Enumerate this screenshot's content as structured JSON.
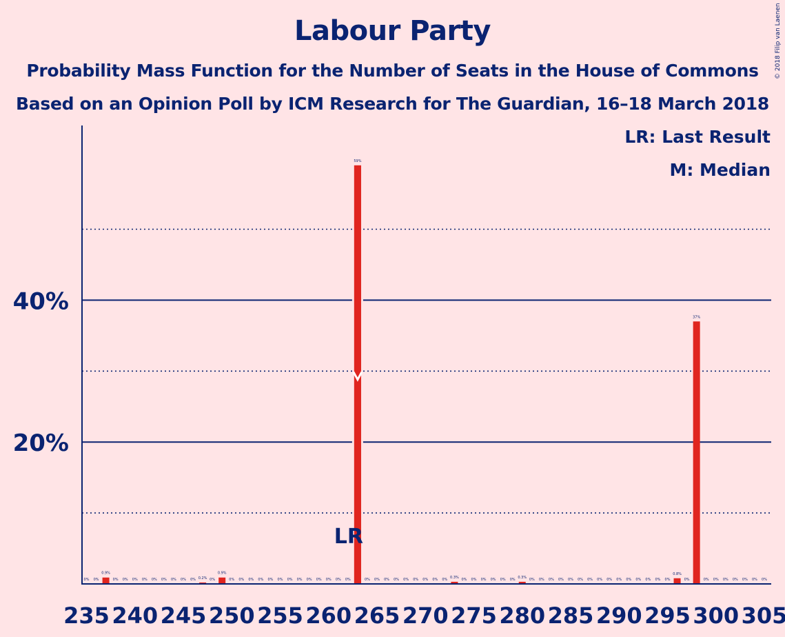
{
  "title": "Labour Party",
  "subtitle": "Probability Mass Function for the Number of Seats in the House of Commons",
  "subtitle2": "Based on an Opinion Poll by ICM Research for The Guardian, 16–18 March 2018",
  "copyright": "© 2018 Filip van Laenen",
  "legend": {
    "lr": "LR: Last Result",
    "median": "M: Median"
  },
  "colors": {
    "background": "#ffe4e6",
    "bar": "#e0251f",
    "axis": "#0a2371"
  },
  "chart_data": {
    "type": "bar",
    "x": [
      235,
      236,
      237,
      238,
      239,
      240,
      241,
      242,
      243,
      244,
      245,
      246,
      247,
      248,
      249,
      250,
      251,
      252,
      253,
      254,
      255,
      256,
      257,
      258,
      259,
      260,
      261,
      262,
      263,
      264,
      265,
      266,
      267,
      268,
      269,
      270,
      271,
      272,
      273,
      274,
      275,
      276,
      277,
      278,
      279,
      280,
      281,
      282,
      283,
      284,
      285,
      286,
      287,
      288,
      289,
      290,
      291,
      292,
      293,
      294,
      295,
      296,
      297,
      298,
      299,
      300,
      301,
      302,
      303,
      304,
      305
    ],
    "values": [
      0,
      0,
      0.9,
      0,
      0,
      0,
      0,
      0,
      0,
      0,
      0,
      0,
      0.2,
      0,
      0.9,
      0,
      0,
      0,
      0,
      0,
      0,
      0,
      0,
      0,
      0,
      0,
      0,
      0,
      59,
      0,
      0,
      0,
      0,
      0,
      0,
      0,
      0,
      0,
      0.3,
      0,
      0,
      0,
      0,
      0,
      0,
      0.3,
      0,
      0,
      0,
      0,
      0,
      0,
      0,
      0,
      0,
      0,
      0,
      0,
      0,
      0,
      0,
      0.8,
      0,
      37,
      0,
      0,
      0,
      0,
      0,
      0,
      0
    ],
    "labels": [
      "0%",
      "0%",
      "0.9%",
      "0%",
      "0%",
      "0%",
      "0%",
      "0%",
      "0%",
      "0%",
      "0%",
      "0%",
      "0.2%",
      "0%",
      "0.9%",
      "0%",
      "0%",
      "0%",
      "0%",
      "0%",
      "0%",
      "0%",
      "0%",
      "0%",
      "0%",
      "0%",
      "0%",
      "0%",
      "59%",
      "0%",
      "0%",
      "0%",
      "0%",
      "0%",
      "0%",
      "0%",
      "0%",
      "0%",
      "0.3%",
      "0%",
      "0%",
      "0%",
      "0%",
      "0%",
      "0%",
      "0.3%",
      "0%",
      "0%",
      "0%",
      "0%",
      "0%",
      "0%",
      "0%",
      "0%",
      "0%",
      "0%",
      "0%",
      "0%",
      "0%",
      "0%",
      "0%",
      "0.8%",
      "0%",
      "37%",
      "0%",
      "0%",
      "0%",
      "0%",
      "0%",
      "0%",
      "0%"
    ],
    "xticks": [
      235,
      240,
      245,
      250,
      255,
      260,
      265,
      270,
      275,
      280,
      285,
      290,
      295,
      300,
      305
    ],
    "yticks": [
      20,
      40
    ],
    "ytick_labels": [
      "20%",
      "40%"
    ],
    "ylim": [
      0,
      64
    ],
    "xlabel": "",
    "ylabel": "",
    "last_result": 263,
    "last_result_label": "LR",
    "median": 263,
    "grid": "solid at 20% steps, dotted at 10% steps"
  }
}
